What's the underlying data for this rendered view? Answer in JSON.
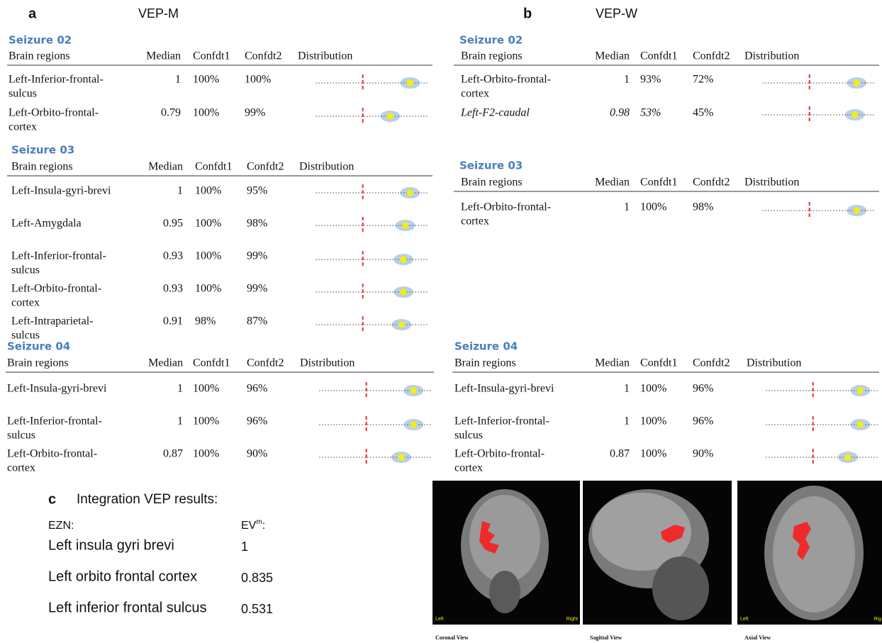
{
  "panels": [
    {
      "label": "a",
      "title": "VEP-M",
      "tables": [
        {
          "title": "Seizure 02",
          "columns": [
            "Brain regions",
            "Median",
            "Confdt1",
            "Confdt2",
            "Distribution"
          ],
          "rows": [
            {
              "region": [
                "Left-Inferior-frontal-",
                "sulcus"
              ],
              "median": 1,
              "confdt1": "100%",
              "confdt2": "100%"
            },
            {
              "region": [
                "Left-Orbito-frontal-",
                "cortex"
              ],
              "median": 0.79,
              "confdt1": "100%",
              "confdt2": "99%"
            }
          ]
        },
        {
          "title": "Seizure 03",
          "columns": [
            "Brain regions",
            "Median",
            "Confdt1",
            "Confdt2",
            "Distribution"
          ],
          "rows": [
            {
              "region": [
                "Left-Insula-gyri-brevi"
              ],
              "median": 1,
              "confdt1": "100%",
              "confdt2": "95%"
            },
            {
              "region": [
                "Left-Amygdala"
              ],
              "median": 0.95,
              "confdt1": "100%",
              "confdt2": "98%"
            },
            {
              "region": [
                "Left-Inferior-frontal-",
                "sulcus"
              ],
              "median": 0.93,
              "confdt1": "100%",
              "confdt2": "99%"
            },
            {
              "region": [
                "Left-Orbito-frontal-",
                "cortex"
              ],
              "median": 0.93,
              "confdt1": "100%",
              "confdt2": "99%"
            },
            {
              "region": [
                "Left-Intraparietal-",
                "sulcus"
              ],
              "median": 0.91,
              "confdt1": "98%",
              "confdt2": "87%"
            }
          ]
        },
        {
          "title": "Seizure 04",
          "columns": [
            "Brain regions",
            "Median",
            "Confdt1",
            "Confdt2",
            "Distribution"
          ],
          "rows": [
            {
              "region": [
                "Left-Insula-gyri-brevi"
              ],
              "median": 1,
              "confdt1": "100%",
              "confdt2": "96%"
            },
            {
              "region": [
                "Left-Inferior-frontal-",
                "sulcus"
              ],
              "median": 1,
              "confdt1": "100%",
              "confdt2": "96%"
            },
            {
              "region": [
                "Left-Orbito-frontal-",
                "cortex"
              ],
              "median": 0.87,
              "confdt1": "100%",
              "confdt2": "90%"
            }
          ]
        }
      ]
    },
    {
      "label": "b",
      "title": "VEP-W",
      "tables": [
        {
          "title": "Seizure 02",
          "columns": [
            "Brain regions",
            "Median",
            "Confdt1",
            "Confdt2",
            "Distribution"
          ],
          "rows": [
            {
              "region": [
                "Left-Orbito-frontal-",
                "cortex"
              ],
              "median": 1,
              "confdt1": "93%",
              "confdt2": "72%"
            },
            {
              "region": [
                "Left-F2-caudal"
              ],
              "median": 0.98,
              "confdt1": "53%",
              "confdt2": "45%",
              "italic": true
            }
          ]
        },
        {
          "title": "Seizure 03",
          "columns": [
            "Brain regions",
            "Median",
            "Confdt1",
            "Confdt2",
            "Distribution"
          ],
          "rows": [
            {
              "region": [
                "Left-Orbito-frontal-",
                "cortex"
              ],
              "median": 1,
              "confdt1": "100%",
              "confdt2": "98%"
            }
          ]
        },
        {
          "title": "Seizure 04",
          "columns": [
            "Brain regions",
            "Median",
            "Confdt1",
            "Confdt2",
            "Distribution"
          ],
          "rows": [
            {
              "region": [
                "Left-Insula-gyri-brevi"
              ],
              "median": 1,
              "confdt1": "100%",
              "confdt2": "96%"
            },
            {
              "region": [
                "Left-Inferior-frontal-",
                "sulcus"
              ],
              "median": 1,
              "confdt1": "100%",
              "confdt2": "96%"
            },
            {
              "region": [
                "Left-Orbito-frontal-",
                "cortex"
              ],
              "median": 0.87,
              "confdt1": "100%",
              "confdt2": "90%"
            }
          ]
        }
      ]
    }
  ],
  "distribution_xlim": [
    0,
    1.2
  ],
  "threshold": 0.5,
  "integration": {
    "label": "c",
    "title": "Integration VEP results:",
    "col1": "EZN:",
    "col2": {
      "text": "EV",
      "sup": "m",
      "suffix": ":"
    },
    "rows": [
      {
        "name": "Left insula gyri brevi",
        "value": 1
      },
      {
        "name": "Left orbito frontal cortex",
        "value": 0.835
      },
      {
        "name": "Left inferior frontal sulcus",
        "value": 0.531
      }
    ]
  },
  "images": [
    {
      "caption": "Coronal View",
      "left": "Left",
      "right": "Right"
    },
    {
      "caption": "Sagittal View"
    },
    {
      "caption": "Axial View",
      "left": "Left",
      "right": "Rig"
    }
  ]
}
